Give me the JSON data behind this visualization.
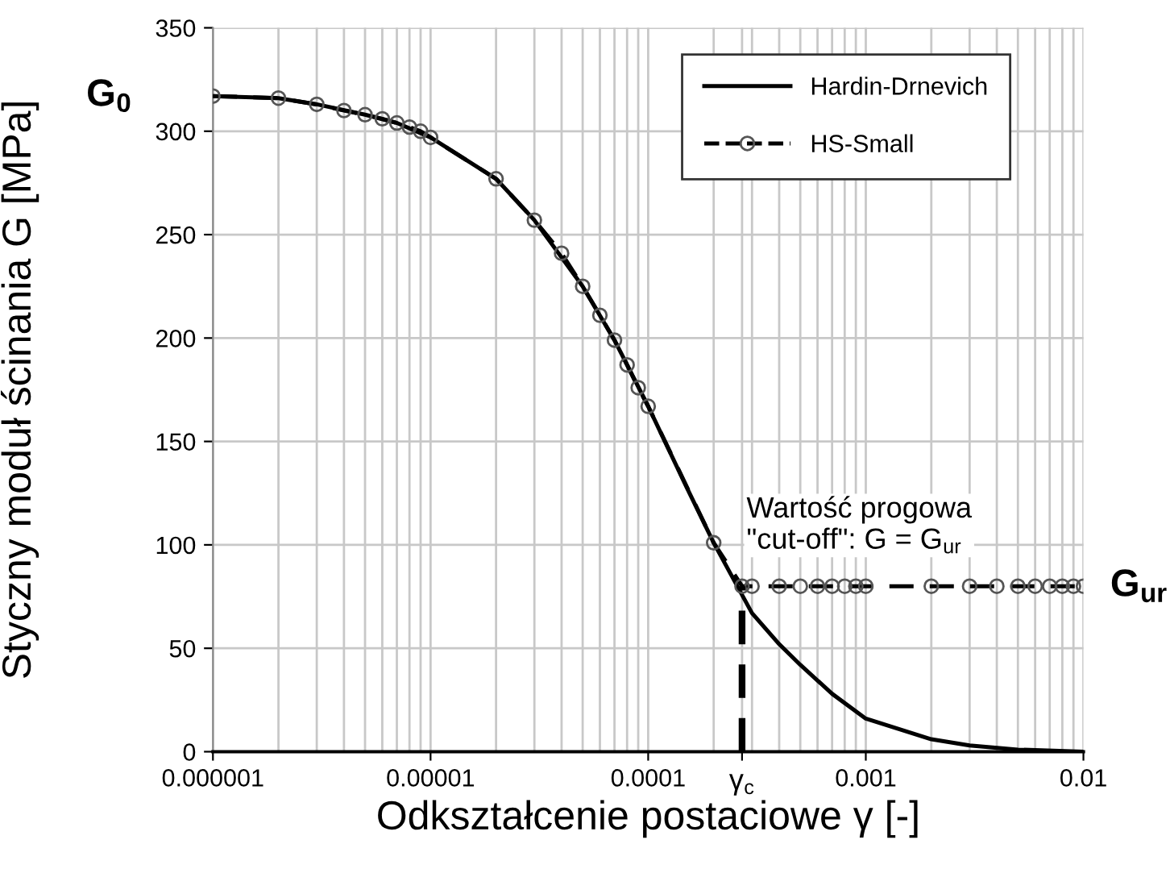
{
  "chart_data": {
    "type": "line",
    "xlabel": "Odkształcenie postaciowe γ [-]",
    "ylabel": "Styczny moduł ścinania G [MPa]",
    "log": "x",
    "grid": true,
    "legend": "top right",
    "xlim": [
      1e-06,
      0.01
    ],
    "ylim": [
      0,
      350
    ],
    "xticks": [
      {
        "value": 1e-06,
        "label": "0.000001"
      },
      {
        "value": 1e-05,
        "label": "0.00001"
      },
      {
        "value": 0.0001,
        "label": "0.0001"
      },
      {
        "value": 0.00027,
        "label": "γ$_{c}$"
      },
      {
        "value": 0.001,
        "label": "0.001"
      },
      {
        "value": 0.01,
        "label": "0.01"
      }
    ],
    "yticks": [
      0,
      50,
      100,
      150,
      200,
      250,
      300,
      350
    ],
    "series": [
      {
        "name": "Hardin-Drnevich",
        "color": "#000000",
        "line_style": "solid",
        "x": [
          1e-06,
          2e-06,
          3e-06,
          5e-06,
          7e-06,
          1e-05,
          2e-05,
          3e-05,
          5e-05,
          7e-05,
          0.0001,
          0.00015,
          0.0002,
          0.0003,
          0.0004,
          0.0005,
          0.0007,
          0.001,
          0.002,
          0.003,
          0.005,
          0.01
        ],
        "values": [
          317,
          316,
          313,
          308,
          304,
          297,
          277,
          257,
          225,
          199,
          167,
          128,
          101,
          67,
          52,
          42,
          28,
          16,
          6,
          3,
          1,
          0
        ]
      },
      {
        "name": "HS-Small",
        "color": "#000000",
        "marker": "circle",
        "line_style": "dashed",
        "x": [
          1e-06,
          2e-06,
          3e-06,
          4e-06,
          5e-06,
          6e-06,
          7e-06,
          8e-06,
          9e-06,
          1e-05,
          2e-05,
          3e-05,
          4e-05,
          5e-05,
          6e-05,
          7e-05,
          8e-05,
          9e-05,
          0.0001,
          0.0002,
          0.00027,
          0.0003,
          0.0004,
          0.0005,
          0.0006,
          0.0007,
          0.0008,
          0.0009,
          0.001,
          0.002,
          0.003,
          0.004,
          0.005,
          0.006,
          0.007,
          0.008,
          0.009,
          0.01
        ],
        "values": [
          317,
          316,
          313,
          310,
          308,
          306,
          304,
          302,
          300,
          297,
          277,
          257,
          241,
          225,
          211,
          199,
          187,
          176,
          167,
          101,
          80,
          80,
          80,
          80,
          80,
          80,
          80,
          80,
          80,
          80,
          80,
          80,
          80,
          80,
          80,
          80,
          80,
          80
        ]
      },
      {
        "color": "#000000",
        "line_style": "dashed",
        "x": [
          0.00027,
          0.00027
        ],
        "values": [
          0,
          80
        ]
      }
    ],
    "annotations": [
      {
        "text": "G$_{0}$",
        "x": 1e-06,
        "y": 317
      },
      {
        "text": "G$_{ur}$",
        "x": 0.01,
        "y": 80
      },
      {
        "text": "Wartość progowa\n\"cut-off\": G = G$_{ur}$",
        "x": 0.00027,
        "y": 80
      }
    ]
  }
}
